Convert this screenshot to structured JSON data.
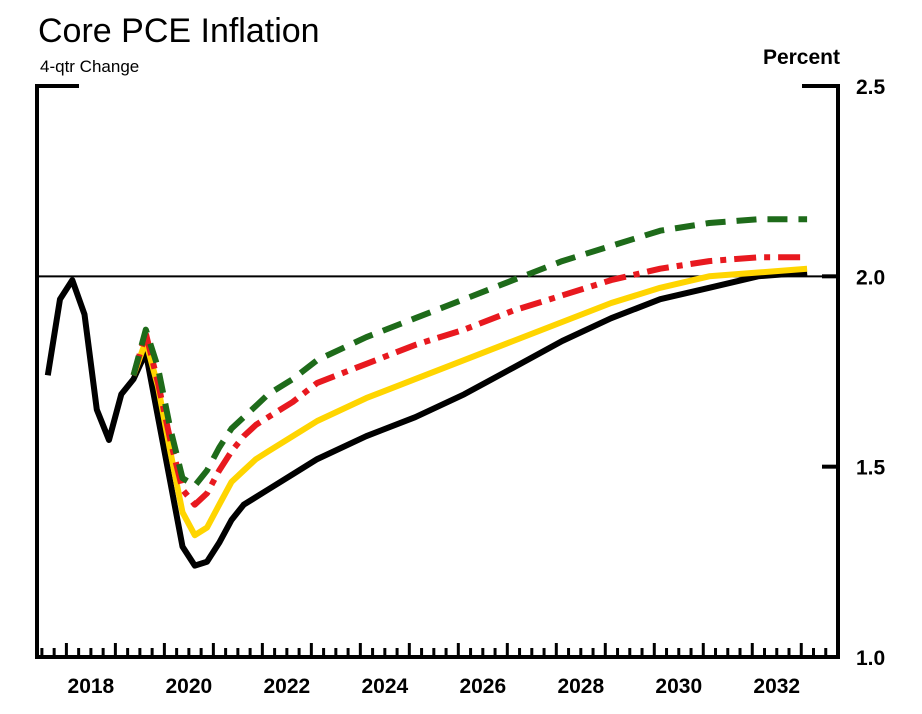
{
  "chart_data": {
    "type": "line",
    "title": "Core PCE Inflation",
    "subtitle": "4-qtr Change",
    "unit_label": "Percent",
    "ylim": [
      1.0,
      2.5
    ],
    "yticks": [
      1.0,
      1.5,
      2.0,
      2.5
    ],
    "ytick_labels": [
      "1.0",
      "1.5",
      "2.0",
      "2.5"
    ],
    "xlim": [
      2017.4,
      2033.75
    ],
    "xticks": [
      2018,
      2020,
      2022,
      2024,
      2026,
      2028,
      2030,
      2032
    ],
    "xtick_labels": [
      "2018",
      "2020",
      "2022",
      "2024",
      "2026",
      "2028",
      "2030",
      "2032"
    ],
    "reference_line": 2.0,
    "series": [
      {
        "color": "#000000",
        "dash": "solid",
        "x": [
          2017.62,
          2017.87,
          2018.12,
          2018.37,
          2018.62,
          2018.87,
          2019.12,
          2019.37,
          2019.62,
          2019.87,
          2020.12,
          2020.37,
          2020.62,
          2020.87,
          2021.12,
          2021.37,
          2021.62,
          2021.87,
          2022.12,
          2022.62,
          2023.12,
          2024.12,
          2025.12,
          2026.12,
          2027.12,
          2028.12,
          2029.12,
          2030.12,
          2031.12,
          2032.12,
          2033.12
        ],
        "y": [
          1.74,
          1.94,
          1.99,
          1.9,
          1.65,
          1.57,
          1.69,
          1.73,
          1.8,
          1.63,
          1.46,
          1.29,
          1.24,
          1.25,
          1.3,
          1.36,
          1.4,
          1.42,
          1.44,
          1.48,
          1.52,
          1.58,
          1.63,
          1.69,
          1.76,
          1.83,
          1.89,
          1.94,
          1.97,
          2.0,
          2.01
        ]
      },
      {
        "color": "#ffd500",
        "dash": "solid",
        "x": [
          2019.37,
          2019.62,
          2019.87,
          2020.12,
          2020.37,
          2020.62,
          2020.87,
          2021.12,
          2021.37,
          2021.62,
          2021.87,
          2022.12,
          2022.62,
          2023.12,
          2024.12,
          2025.12,
          2026.12,
          2027.12,
          2028.12,
          2029.12,
          2030.12,
          2031.12,
          2032.12,
          2033.12
        ],
        "y": [
          1.74,
          1.83,
          1.71,
          1.54,
          1.38,
          1.32,
          1.34,
          1.4,
          1.46,
          1.49,
          1.52,
          1.54,
          1.58,
          1.62,
          1.68,
          1.73,
          1.78,
          1.83,
          1.88,
          1.93,
          1.97,
          2.0,
          2.01,
          2.02
        ]
      },
      {
        "color": "#e8191f",
        "dash": "dashdot",
        "x": [
          2019.37,
          2019.62,
          2019.87,
          2020.12,
          2020.37,
          2020.62,
          2020.87,
          2021.12,
          2021.37,
          2021.62,
          2021.87,
          2022.12,
          2022.62,
          2023.12,
          2024.12,
          2025.12,
          2026.12,
          2027.12,
          2028.12,
          2029.12,
          2030.12,
          2031.12,
          2032.12,
          2033.12
        ],
        "y": [
          1.74,
          1.85,
          1.72,
          1.57,
          1.44,
          1.4,
          1.43,
          1.49,
          1.54,
          1.58,
          1.61,
          1.63,
          1.67,
          1.72,
          1.77,
          1.82,
          1.86,
          1.91,
          1.95,
          1.99,
          2.02,
          2.04,
          2.05,
          2.05
        ]
      },
      {
        "color": "#1e6b1a",
        "dash": "dashed",
        "x": [
          2019.37,
          2019.62,
          2019.87,
          2020.12,
          2020.37,
          2020.62,
          2020.87,
          2021.12,
          2021.37,
          2021.62,
          2021.87,
          2022.12,
          2022.62,
          2023.12,
          2024.12,
          2025.12,
          2026.12,
          2027.12,
          2028.12,
          2029.12,
          2030.12,
          2031.12,
          2032.12,
          2033.12
        ],
        "y": [
          1.74,
          1.86,
          1.76,
          1.6,
          1.47,
          1.45,
          1.49,
          1.55,
          1.6,
          1.63,
          1.66,
          1.69,
          1.73,
          1.78,
          1.84,
          1.89,
          1.94,
          1.99,
          2.04,
          2.08,
          2.12,
          2.14,
          2.15,
          2.15
        ]
      }
    ]
  }
}
